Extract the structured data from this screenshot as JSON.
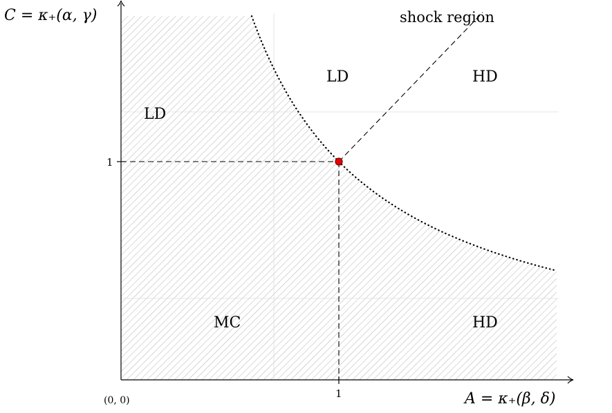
{
  "axes": {
    "x_label": "A = κ₊(β, δ)",
    "y_label": "C = κ₊(α, γ)",
    "origin_label": "(0, 0)",
    "x_tick": "1",
    "y_tick": "1"
  },
  "regions": {
    "ld_left": "LD",
    "ld_top": "LD",
    "hd_top": "HD",
    "mc": "MC",
    "hd_bottom": "HD"
  },
  "annotations": {
    "shock_region": "shock region"
  },
  "colors": {
    "hatch": "#b8b8b8",
    "point_fill": "#e60000",
    "point_stroke": "#7a0000",
    "axis": "#000000"
  }
}
